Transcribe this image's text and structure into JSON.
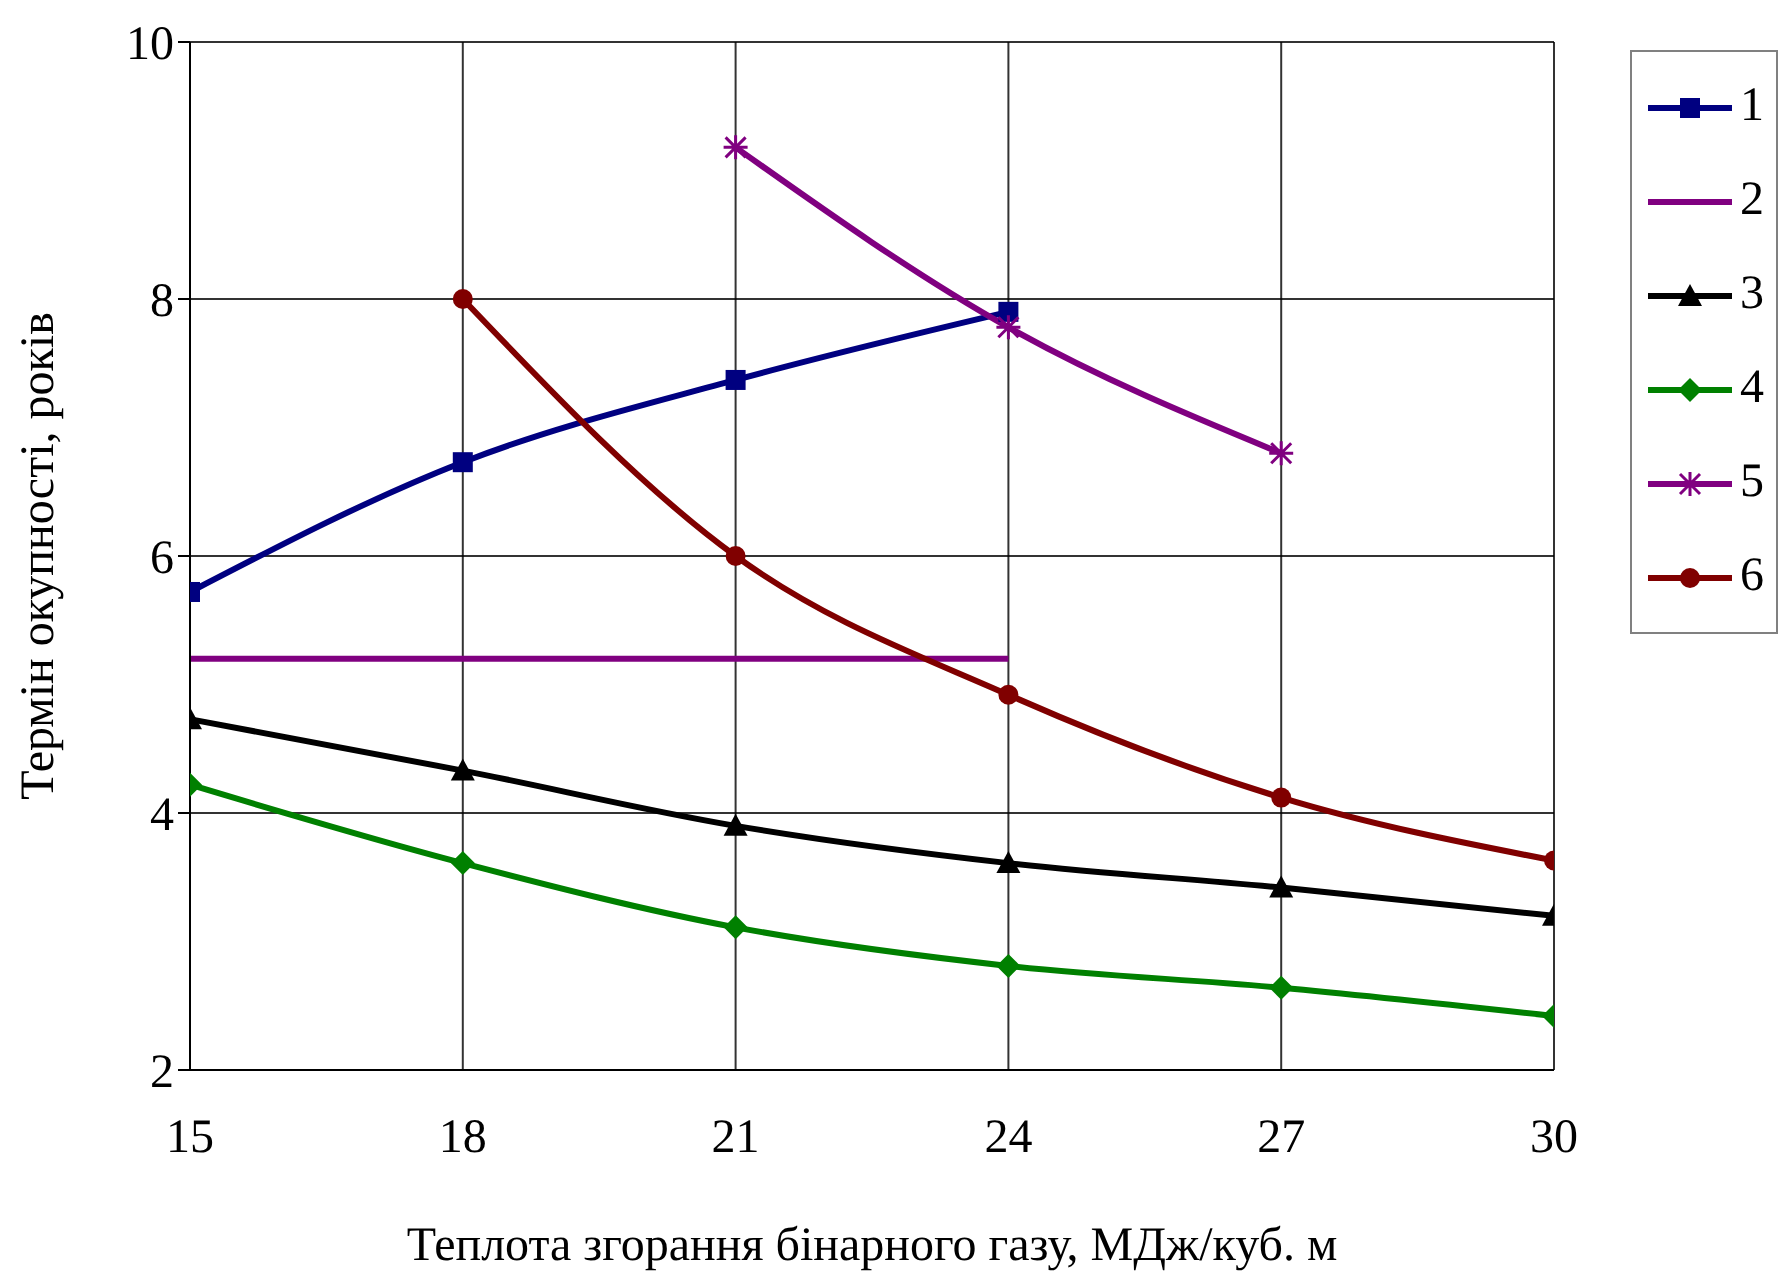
{
  "chart_data": {
    "type": "line",
    "xlabel": "Теплота згорання бінарного газу, МДж/куб. м",
    "ylabel": "Термін окупності, років",
    "x": [
      15,
      18,
      21,
      24,
      27,
      30
    ],
    "series": [
      {
        "name": "1",
        "color": "#000080",
        "marker": "square",
        "values": [
          5.72,
          6.73,
          7.37,
          7.9,
          null,
          null
        ]
      },
      {
        "name": "2",
        "color": "#800080",
        "marker": "none",
        "values": [
          5.2,
          5.2,
          5.2,
          5.2,
          null,
          null
        ]
      },
      {
        "name": "3",
        "color": "#000000",
        "marker": "triangle",
        "values": [
          4.73,
          4.33,
          3.9,
          3.61,
          3.42,
          3.2
        ]
      },
      {
        "name": "4",
        "color": "#008000",
        "marker": "diamond",
        "values": [
          4.22,
          3.61,
          3.11,
          2.81,
          2.64,
          2.42
        ]
      },
      {
        "name": "5",
        "color": "#800080",
        "marker": "cross",
        "values": [
          null,
          null,
          9.18,
          7.78,
          6.8,
          null
        ]
      },
      {
        "name": "6",
        "color": "#800000",
        "marker": "circle",
        "values": [
          null,
          8.0,
          6.0,
          4.92,
          4.12,
          3.63
        ]
      }
    ],
    "xlim": [
      15,
      30
    ],
    "xticks": [
      15,
      18,
      21,
      24,
      27,
      30
    ],
    "ylim": [
      2,
      10
    ],
    "yticks": [
      2,
      4,
      6,
      8,
      10
    ],
    "grid": true,
    "legend": "top right",
    "line_style": "solid"
  }
}
